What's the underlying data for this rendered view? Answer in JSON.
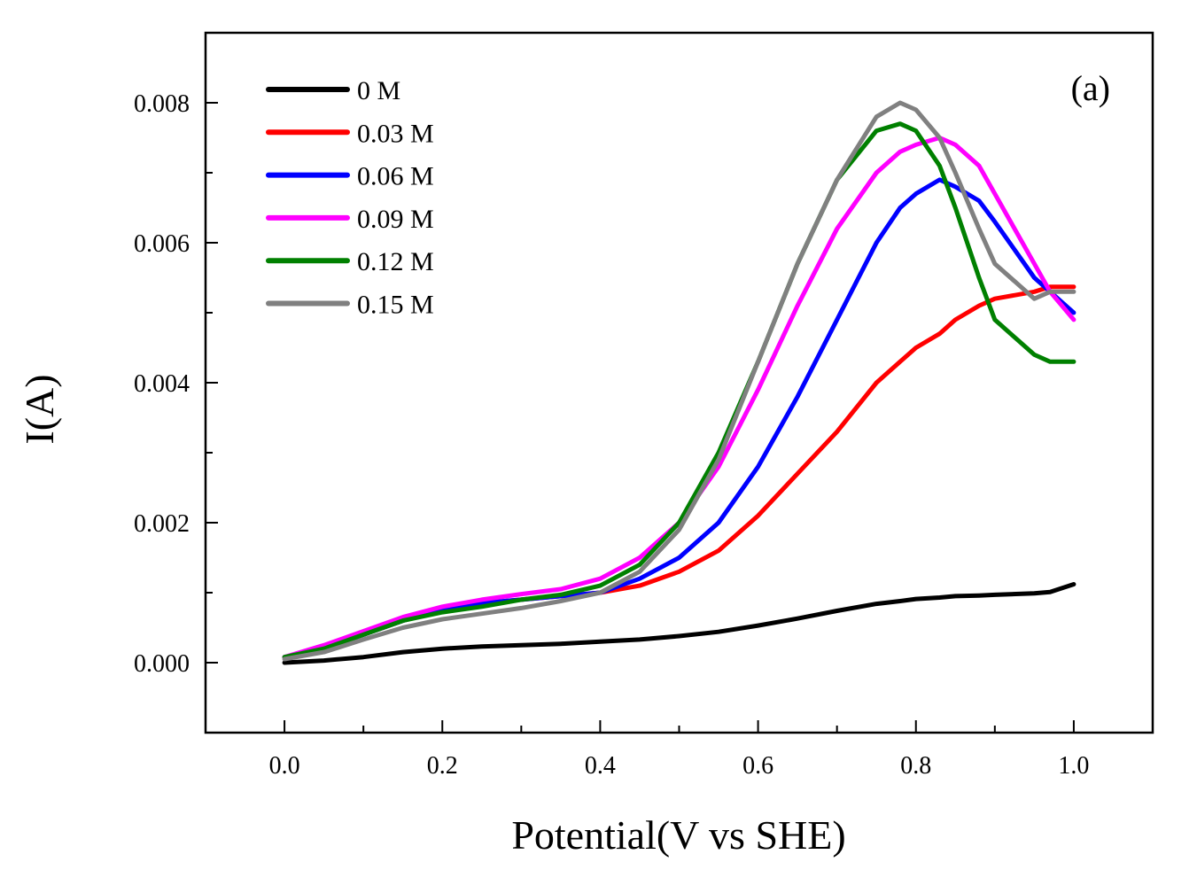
{
  "chart_data": {
    "type": "line",
    "panel_label": "(a)",
    "xlabel": "Potential(V vs SHE)",
    "ylabel": "I(A)",
    "xlim": [
      -0.1,
      1.1
    ],
    "ylim": [
      -0.001,
      0.009
    ],
    "x_ticks": [
      0.0,
      0.2,
      0.4,
      0.6,
      0.8,
      1.0
    ],
    "x_tick_labels": [
      "0.0",
      "0.2",
      "0.4",
      "0.6",
      "0.8",
      "1.0"
    ],
    "y_ticks": [
      0.0,
      0.002,
      0.004,
      0.006,
      0.008
    ],
    "y_tick_labels": [
      "0.000",
      "0.002",
      "0.004",
      "0.006",
      "0.008"
    ],
    "grid": false,
    "legend_position": "top-left",
    "x": [
      0.0,
      0.05,
      0.1,
      0.15,
      0.2,
      0.25,
      0.3,
      0.35,
      0.4,
      0.45,
      0.5,
      0.55,
      0.6,
      0.65,
      0.7,
      0.75,
      0.78,
      0.8,
      0.83,
      0.85,
      0.88,
      0.9,
      0.95,
      0.97,
      1.0
    ],
    "series": [
      {
        "name": "0 M",
        "color": "#000000",
        "values": [
          0.0,
          3e-05,
          8e-05,
          0.00015,
          0.0002,
          0.00023,
          0.00025,
          0.00027,
          0.0003,
          0.00033,
          0.00038,
          0.00044,
          0.00053,
          0.00063,
          0.00074,
          0.00084,
          0.00088,
          0.00091,
          0.00093,
          0.00095,
          0.00096,
          0.00097,
          0.00099,
          0.00101,
          0.00112
        ]
      },
      {
        "name": "0.03 M",
        "color": "#ff0000",
        "values": [
          8e-05,
          0.0002,
          0.0004,
          0.0006,
          0.00075,
          0.00085,
          0.0009,
          0.00095,
          0.001,
          0.0011,
          0.0013,
          0.0016,
          0.0021,
          0.0027,
          0.0033,
          0.004,
          0.0043,
          0.0045,
          0.0047,
          0.0049,
          0.0051,
          0.0052,
          0.0053,
          0.00537,
          0.00537
        ]
      },
      {
        "name": "0.06 M",
        "color": "#0000ff",
        "values": [
          8e-05,
          0.0002,
          0.0004,
          0.0006,
          0.00075,
          0.00085,
          0.0009,
          0.00095,
          0.001,
          0.0012,
          0.0015,
          0.002,
          0.0028,
          0.0038,
          0.0049,
          0.006,
          0.0065,
          0.0067,
          0.0069,
          0.0068,
          0.0066,
          0.0063,
          0.0055,
          0.0053,
          0.005
        ]
      },
      {
        "name": "0.09 M",
        "color": "#ff00ff",
        "values": [
          8e-05,
          0.00025,
          0.00045,
          0.00065,
          0.0008,
          0.0009,
          0.00098,
          0.00105,
          0.0012,
          0.0015,
          0.002,
          0.0028,
          0.0039,
          0.0051,
          0.0062,
          0.007,
          0.0073,
          0.0074,
          0.0075,
          0.0074,
          0.0071,
          0.0067,
          0.0057,
          0.0053,
          0.0049
        ]
      },
      {
        "name": "0.12 M",
        "color": "#008000",
        "values": [
          8e-05,
          0.0002,
          0.0004,
          0.0006,
          0.00072,
          0.0008,
          0.0009,
          0.00097,
          0.0011,
          0.0014,
          0.002,
          0.003,
          0.0043,
          0.0057,
          0.0069,
          0.0076,
          0.0077,
          0.0076,
          0.0071,
          0.0065,
          0.0055,
          0.0049,
          0.0044,
          0.0043,
          0.0043
        ]
      },
      {
        "name": "0.15 M",
        "color": "#808080",
        "values": [
          5e-05,
          0.00015,
          0.00033,
          0.0005,
          0.00062,
          0.0007,
          0.00078,
          0.00088,
          0.001,
          0.0013,
          0.0019,
          0.0029,
          0.0043,
          0.0057,
          0.0069,
          0.0078,
          0.008,
          0.0079,
          0.0075,
          0.007,
          0.0062,
          0.0057,
          0.0052,
          0.0053,
          0.0053
        ]
      }
    ]
  }
}
